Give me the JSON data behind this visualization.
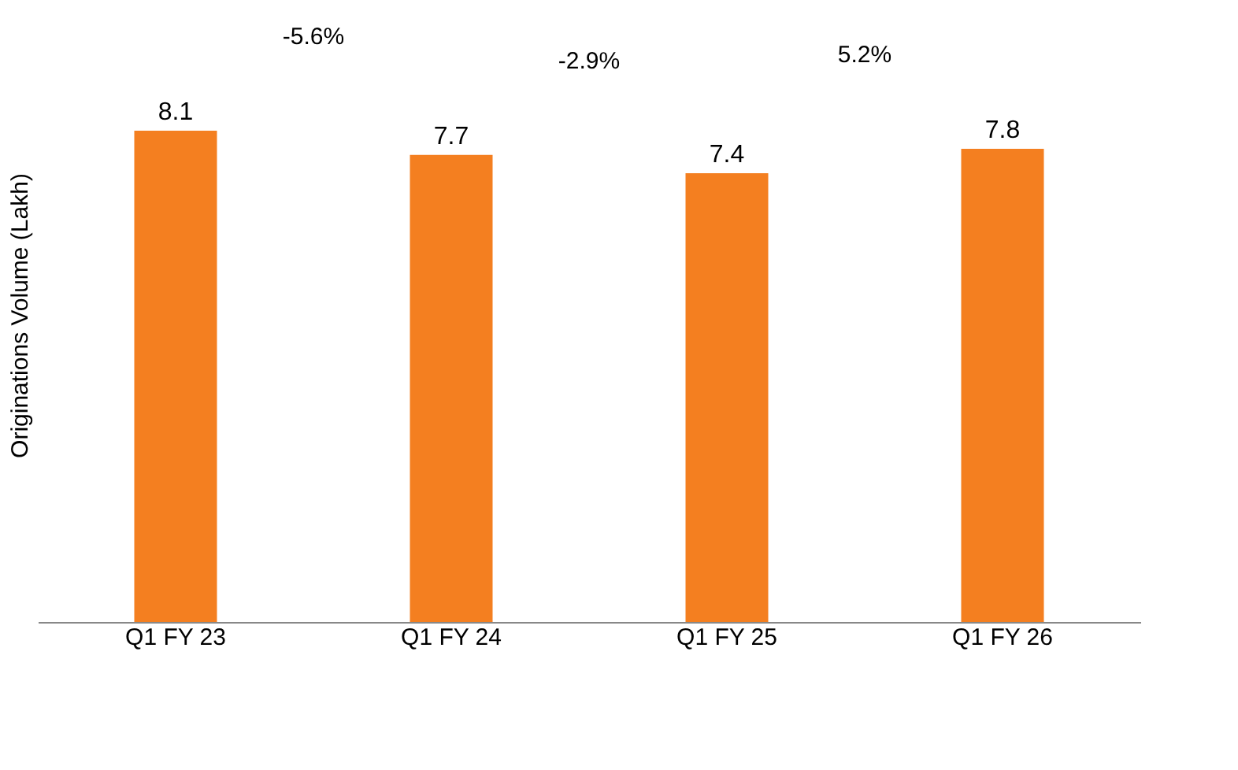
{
  "chart_data": {
    "type": "bar",
    "ylabel": "Originations Volume (Lakh)",
    "categories": [
      "Q1 FY 23",
      "Q1 FY 24",
      "Q1 FY 25",
      "Q1 FY 26"
    ],
    "values": [
      8.1,
      7.7,
      7.4,
      7.8
    ],
    "color": "#f47f20",
    "tick_labels": "x",
    "grid": false,
    "data_labels": true,
    "annotations": [
      "-5.6%",
      "-2.9%",
      "5.2%"
    ]
  }
}
